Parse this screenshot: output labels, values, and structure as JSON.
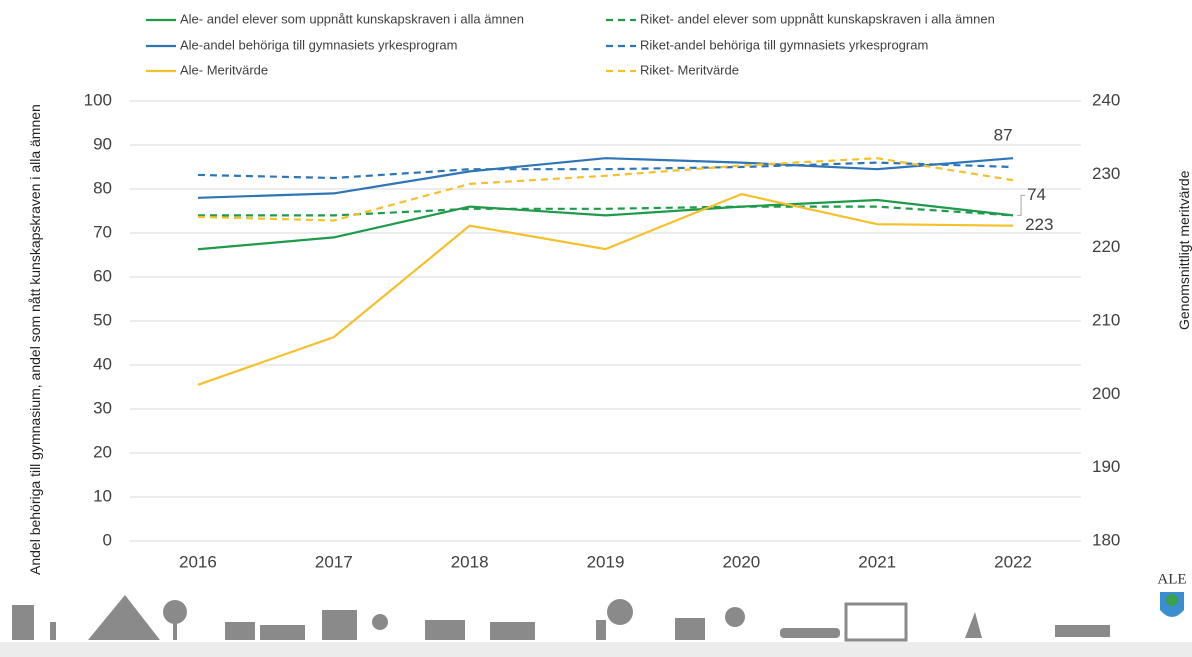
{
  "chart_data": {
    "type": "line",
    "categories": [
      "2016",
      "2017",
      "2018",
      "2019",
      "2020",
      "2021",
      "2022"
    ],
    "ylabel": "Andel behöriga till gymnasium, andel som nått kunskapskraven i alla ämnen",
    "y2label": "Genomsnittligt meritvärde",
    "ylim": [
      0,
      100
    ],
    "yticks": [
      0,
      10,
      20,
      30,
      40,
      50,
      60,
      70,
      80,
      90,
      100
    ],
    "y2lim": [
      180,
      240
    ],
    "y2ticks": [
      180,
      190,
      200,
      210,
      220,
      230,
      240
    ],
    "grid": true,
    "legend": "top",
    "series": [
      {
        "name": "Ale- andel elever som uppnått kunskapskraven i alla ämnen",
        "color": "#1f9a4b",
        "dash": false,
        "label_last": true,
        "values": [
          66.3,
          69,
          76,
          74,
          76,
          77.5,
          74
        ]
      },
      {
        "name": "Riket- andel elever som uppnått kunskapskraven i alla ämnen",
        "color": "#1f9a4b",
        "dash": true,
        "values": [
          74,
          74,
          75.5,
          75.5,
          76,
          76,
          74
        ]
      },
      {
        "name": "Ale-andel behöriga till gymnasiets yrkesprogram",
        "color": "#2e75b6",
        "dash": false,
        "label_last": true,
        "values": [
          78,
          79,
          84,
          87,
          86,
          84.5,
          87
        ]
      },
      {
        "name": "Riket-andel behöriga till gymnasiets yrkesprogram",
        "color": "#2e75b6",
        "dash": true,
        "values": [
          83.2,
          82.5,
          84.5,
          84.5,
          85,
          86,
          85
        ]
      },
      {
        "name": "Ale- Meritvärde",
        "color": "#f5c02a",
        "dash": false,
        "axis": "y2",
        "label_last": true,
        "values": [
          201.3,
          207.8,
          223,
          219.8,
          227.3,
          223.2,
          223
        ]
      },
      {
        "name": "Riket- Meritvärde",
        "color": "#f5c02a",
        "dash": true,
        "axis": "y2",
        "values": [
          224.2,
          223.7,
          228.7,
          229.8,
          231.2,
          232.2,
          229.2
        ]
      }
    ]
  },
  "logo_text": "ALE"
}
